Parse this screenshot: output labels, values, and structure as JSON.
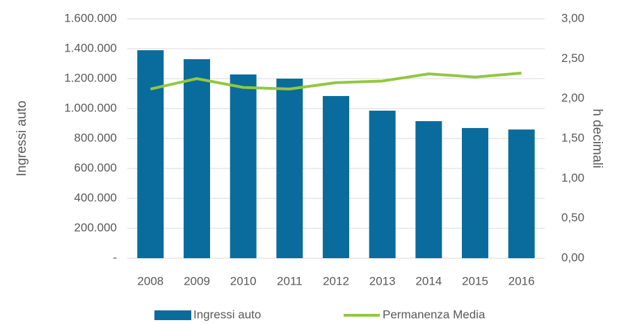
{
  "chart_data": {
    "type": "bar_line",
    "categories": [
      "2008",
      "2009",
      "2010",
      "2011",
      "2012",
      "2013",
      "2014",
      "2015",
      "2016"
    ],
    "series": [
      {
        "name": "Ingressi auto",
        "type": "bar",
        "color": "#0a6c9c",
        "values": [
          1390000,
          1330000,
          1228000,
          1200000,
          1084000,
          986000,
          916000,
          870000,
          860000
        ]
      },
      {
        "name": "Permanenza Media",
        "type": "line",
        "axis": "y2",
        "color": "#92c83e",
        "values": [
          2.12,
          2.25,
          2.14,
          2.12,
          2.2,
          2.22,
          2.31,
          2.27,
          2.32
        ]
      }
    ],
    "ylabel": "Ingressi auto",
    "y2label": "h decimali",
    "ylim": [
      0,
      1600000
    ],
    "yticks": [
      {
        "value": 0,
        "label": "-"
      },
      {
        "value": 200000,
        "label": "200.000"
      },
      {
        "value": 400000,
        "label": "400.000"
      },
      {
        "value": 600000,
        "label": "600.000"
      },
      {
        "value": 800000,
        "label": "800.000"
      },
      {
        "value": 1000000,
        "label": "1.000.000"
      },
      {
        "value": 1200000,
        "label": "1.200.000"
      },
      {
        "value": 1400000,
        "label": "1.400.000"
      },
      {
        "value": 1600000,
        "label": "1.600.000"
      }
    ],
    "y2lim": [
      0,
      3
    ],
    "y2ticks": [
      {
        "value": 0,
        "label": "0,00"
      },
      {
        "value": 0.5,
        "label": "0,50"
      },
      {
        "value": 1,
        "label": "1,00"
      },
      {
        "value": 1.5,
        "label": "1,50"
      },
      {
        "value": 2,
        "label": "2,00"
      },
      {
        "value": 2.5,
        "label": "2,50"
      },
      {
        "value": 3,
        "label": "3,00"
      }
    ],
    "grid": true,
    "legend": "bottom"
  }
}
